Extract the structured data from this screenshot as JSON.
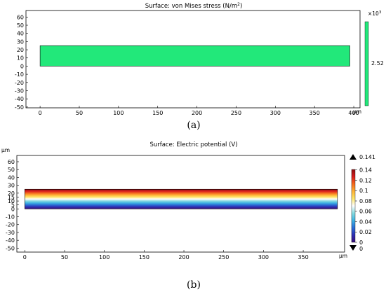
{
  "chart_data": [
    {
      "type": "heatmap",
      "title_prefix": "Surface: von Mises stress (N/m",
      "title_sup": "2",
      "title_suffix": ")",
      "caption": "(a)",
      "x_unit": "µm",
      "xlim": [
        -18,
        408
      ],
      "ylim": [
        -51,
        68
      ],
      "x_ticks": [
        0,
        50,
        100,
        150,
        200,
        250,
        300,
        350,
        400
      ],
      "y_ticks": [
        60,
        50,
        40,
        30,
        20,
        10,
        0,
        -10,
        -20,
        -30,
        -40,
        -50
      ],
      "beam": {
        "x0": 0,
        "x1": 395,
        "y0": 0,
        "y1": 25
      },
      "fill_color": "#22e87a",
      "colorbar": {
        "multiplier_prefix": "×10",
        "multiplier_exp": "3",
        "labels": [
          "2.52"
        ],
        "color": "#22e87a"
      }
    },
    {
      "type": "heatmap",
      "title": "Surface: Electric potential (V)",
      "caption": "(b)",
      "x_unit": "µm",
      "y_unit": "µm",
      "xlim": [
        -10,
        402
      ],
      "ylim": [
        -55,
        68
      ],
      "x_ticks": [
        0,
        50,
        100,
        150,
        200,
        250,
        300,
        350
      ],
      "y_ticks": [
        60,
        50,
        40,
        30,
        20,
        15,
        10,
        5,
        0,
        -10,
        -20,
        -30,
        -40,
        -50
      ],
      "beam": {
        "x0": 0,
        "x1": 393,
        "y0": 0,
        "y1": 25
      },
      "value_range": [
        0,
        0.141
      ],
      "colorbar": {
        "max_label": "0.141",
        "min_label": "0",
        "tick_values": [
          0.14,
          0.12,
          0.1,
          0.08,
          0.06,
          0.04,
          0.02,
          0
        ],
        "tick_labels": [
          "0.14",
          "0.12",
          "0.1",
          "0.08",
          "0.06",
          "0.04",
          "0.02",
          "0"
        ]
      },
      "colormap": [
        "#3a0f78",
        "#2e2fb3",
        "#2a6fd6",
        "#3fb3e2",
        "#86dbe0",
        "#ffffff",
        "#ffe76a",
        "#ffb437",
        "#f56a1e",
        "#d81e1e",
        "#8c0f12"
      ]
    }
  ]
}
